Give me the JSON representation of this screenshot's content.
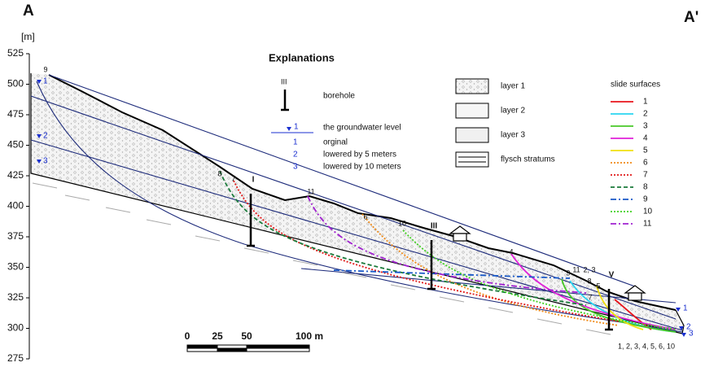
{
  "section": {
    "start": "A",
    "end": "A'",
    "unit": "[m]",
    "elevation_ticks": [
      525,
      500,
      475,
      450,
      425,
      400,
      375,
      350,
      325,
      300,
      275
    ]
  },
  "explanations": {
    "title": "Explanations",
    "borehole": {
      "symbol": "III",
      "label": "borehole"
    },
    "groundwater": {
      "symbol": "1",
      "label": "the groundwater level",
      "levels": [
        {
          "id": "1",
          "label": "orginal"
        },
        {
          "id": "2",
          "label": "lowered by 5 meters"
        },
        {
          "id": "3",
          "label": "lowered by 10 meters"
        }
      ]
    },
    "layers": [
      "layer 1",
      "layer 2",
      "layer 3",
      "flysch stratums"
    ],
    "slide_surfaces": {
      "title": "slide surfaces",
      "items": [
        {
          "id": "1",
          "color": "#e8141c",
          "style": "solid"
        },
        {
          "id": "2",
          "color": "#2ad4f0",
          "style": "solid"
        },
        {
          "id": "3",
          "color": "#48c828",
          "style": "solid"
        },
        {
          "id": "4",
          "color": "#e020d8",
          "style": "solid"
        },
        {
          "id": "5",
          "color": "#f0e010",
          "style": "solid"
        },
        {
          "id": "6",
          "color": "#f08a18",
          "style": "dotted"
        },
        {
          "id": "7",
          "color": "#e01818",
          "style": "dotted"
        },
        {
          "id": "8",
          "color": "#1a7a3a",
          "style": "dashed"
        },
        {
          "id": "9",
          "color": "#1858c8",
          "style": "dashdot"
        },
        {
          "id": "10",
          "color": "#40d020",
          "style": "dotted"
        },
        {
          "id": "11",
          "color": "#a020d0",
          "style": "dashdot"
        }
      ]
    }
  },
  "boreholes": [
    "I",
    "III",
    "V"
  ],
  "scale_bar": [
    "0",
    "25",
    "50",
    "100 m"
  ],
  "surface_labels": [
    "9",
    "8",
    "7",
    "11",
    "6",
    "10",
    "4",
    "9",
    "11",
    "2, 3",
    "8",
    "5",
    "7",
    "1, 2, 3, 4, 5, 6, 10"
  ],
  "water_labels_left": [
    "1",
    "2",
    "3"
  ],
  "water_labels_right": [
    "1",
    "2",
    "3"
  ]
}
